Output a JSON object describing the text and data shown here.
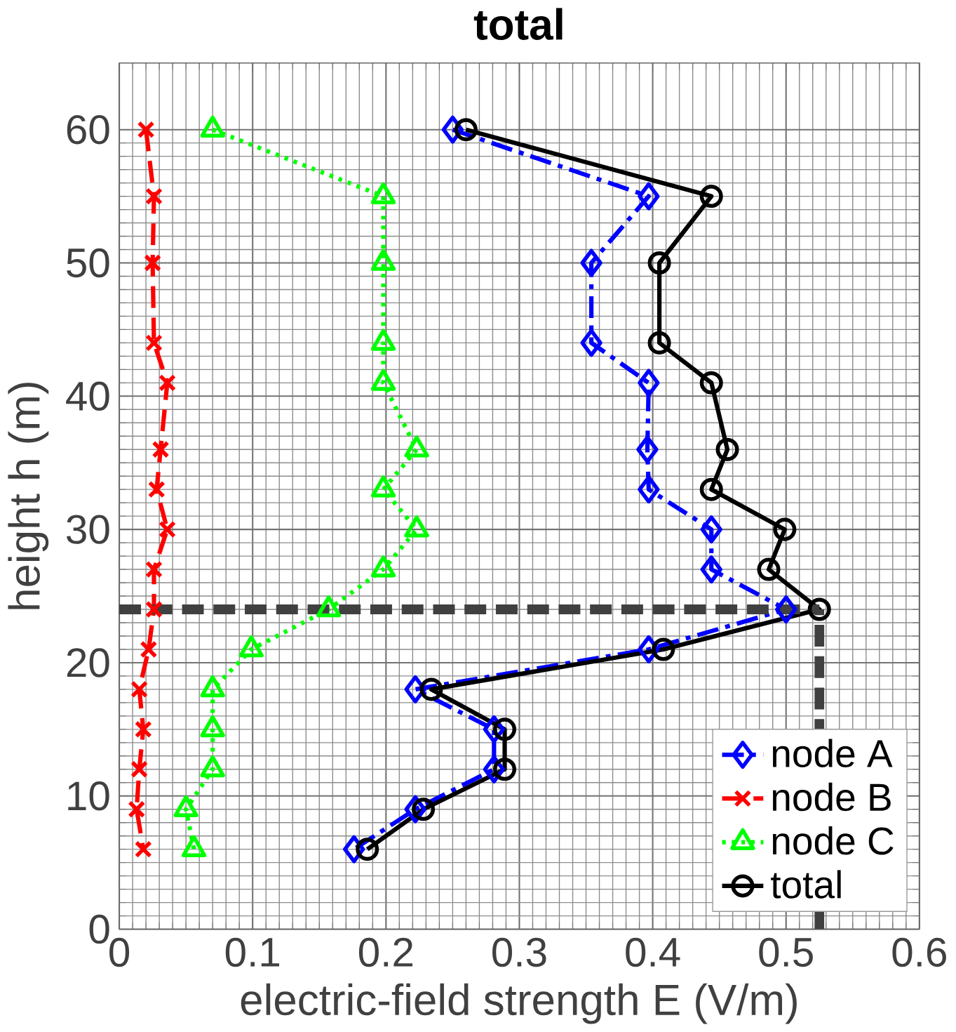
{
  "chart_data": {
    "type": "line",
    "title": "total",
    "xlabel": "electric-field strength E (V/m)",
    "ylabel": "height h (m)",
    "xlim": [
      0,
      0.6
    ],
    "ylim": [
      0,
      65
    ],
    "xticks": [
      0,
      0.1,
      0.2,
      0.3,
      0.4,
      0.5,
      0.6
    ],
    "yticks": [
      0,
      10,
      20,
      30,
      40,
      50,
      60
    ],
    "grid": true,
    "legend": "bottom right",
    "series": [
      {
        "name": "node A",
        "color": "#0000ff",
        "marker": "diamond",
        "line_style": "dashdot",
        "x": [
          0.25,
          0.397,
          0.354,
          0.354,
          0.397,
          0.396,
          0.397,
          0.444,
          0.444,
          0.5,
          0.397,
          0.222,
          0.281,
          0.281,
          0.222,
          0.176
        ],
        "values": [
          60,
          55,
          50,
          44,
          41,
          36,
          33,
          30,
          27,
          24,
          21,
          18,
          15,
          12,
          9,
          6
        ]
      },
      {
        "name": "node B",
        "color": "#ff0000",
        "marker": "cross",
        "line_style": "dashed",
        "x": [
          0.02,
          0.026,
          0.025,
          0.026,
          0.036,
          0.031,
          0.028,
          0.036,
          0.026,
          0.026,
          0.022,
          0.015,
          0.018,
          0.015,
          0.013,
          0.018
        ],
        "values": [
          60,
          55,
          50,
          44,
          41,
          36,
          33,
          30,
          27,
          24,
          21,
          18,
          15,
          12,
          9,
          6
        ]
      },
      {
        "name": "node C",
        "color": "#00ff00",
        "marker": "triangle",
        "line_style": "dotted",
        "x": [
          0.07,
          0.198,
          0.198,
          0.198,
          0.198,
          0.223,
          0.198,
          0.223,
          0.198,
          0.157,
          0.099,
          0.07,
          0.07,
          0.07,
          0.05,
          0.056
        ],
        "values": [
          60,
          55,
          50,
          44,
          41,
          36,
          33,
          30,
          27,
          24,
          21,
          18,
          15,
          12,
          9,
          6
        ]
      },
      {
        "name": "total",
        "color": "#000000",
        "marker": "circle",
        "line_style": "solid",
        "x": [
          0.26,
          0.444,
          0.405,
          0.405,
          0.444,
          0.456,
          0.444,
          0.499,
          0.487,
          0.525,
          0.408,
          0.234,
          0.289,
          0.289,
          0.228,
          0.186
        ],
        "values": [
          60,
          55,
          50,
          44,
          41,
          36,
          33,
          30,
          27,
          24,
          21,
          18,
          15,
          12,
          9,
          6
        ]
      }
    ],
    "ref_lines": [
      {
        "axis": "y",
        "value": 24,
        "color": "#404040",
        "line_style": "dashed"
      },
      {
        "axis": "x",
        "value": 0.525,
        "color": "#404040",
        "line_style": "dashed"
      }
    ]
  }
}
